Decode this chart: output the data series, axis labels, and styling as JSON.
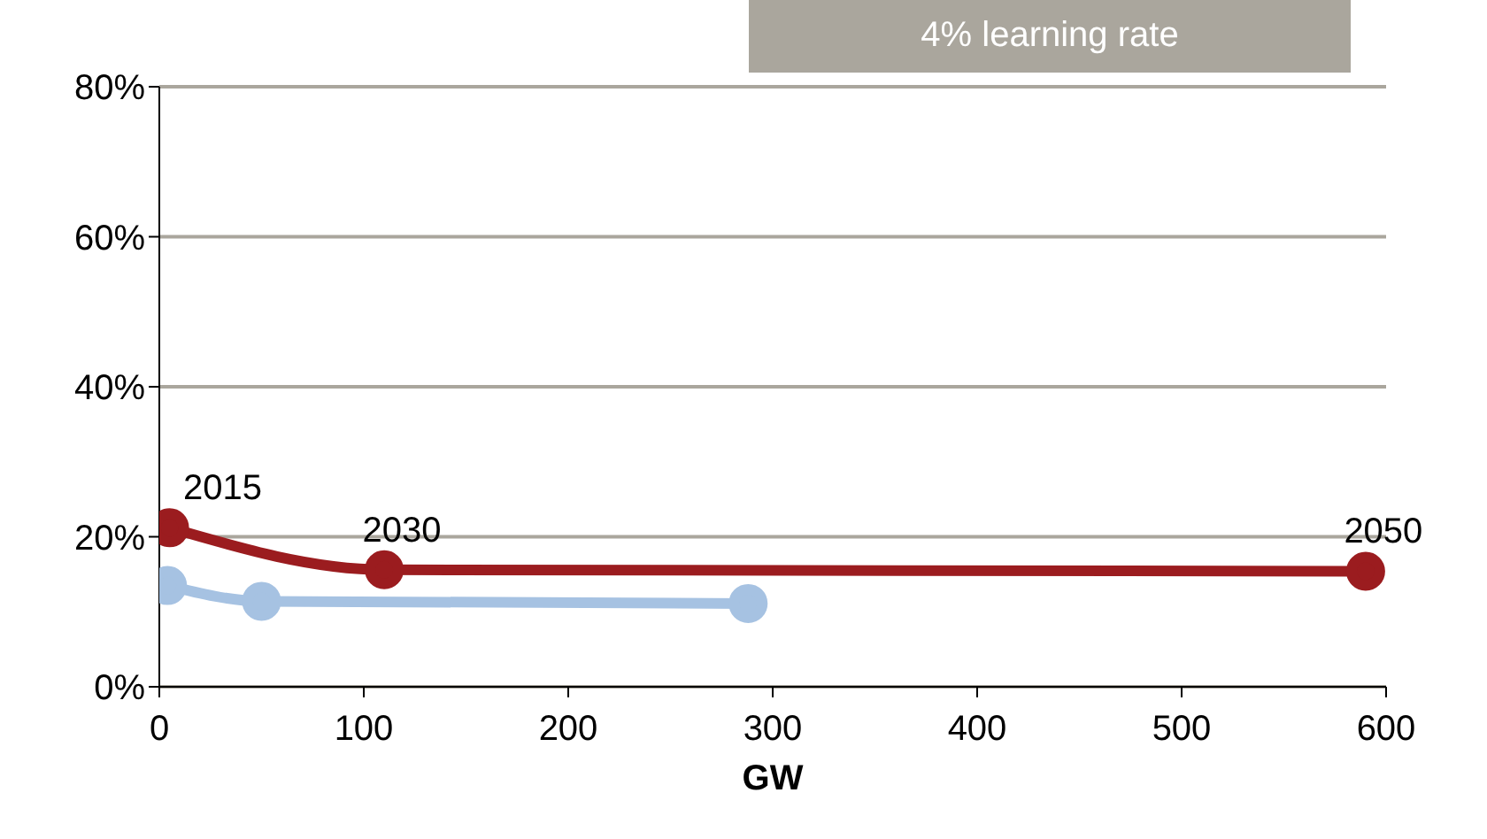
{
  "chart_data": {
    "type": "line",
    "xlabel": "GW",
    "xlim": [
      0,
      600
    ],
    "xticks": [
      0,
      100,
      200,
      300,
      400,
      500,
      600
    ],
    "ylim": [
      0,
      80
    ],
    "yticks": [
      {
        "value": 0,
        "label": "0%"
      },
      {
        "value": 20,
        "label": "20%"
      },
      {
        "value": 40,
        "label": "40%"
      },
      {
        "value": 60,
        "label": "60%"
      },
      {
        "value": 80,
        "label": "80%"
      }
    ],
    "grid": "y",
    "legend": false,
    "marker": "circle",
    "line_style": "solid",
    "series": [
      {
        "color": "#9b1c1f",
        "x": [
          5,
          110,
          590
        ],
        "values": [
          21.2,
          15.6,
          15.4
        ]
      },
      {
        "color": "#a6c2e2",
        "x": [
          4,
          50,
          288
        ],
        "values": [
          13.5,
          11.4,
          11.1
        ]
      }
    ],
    "annotations": [
      {
        "text": "2015",
        "x": 5,
        "y": 21.2
      },
      {
        "text": "2030",
        "x": 110,
        "y": 15.6
      },
      {
        "text": "2050",
        "x": 590,
        "y": 15.4
      },
      "4% learning rate"
    ]
  }
}
